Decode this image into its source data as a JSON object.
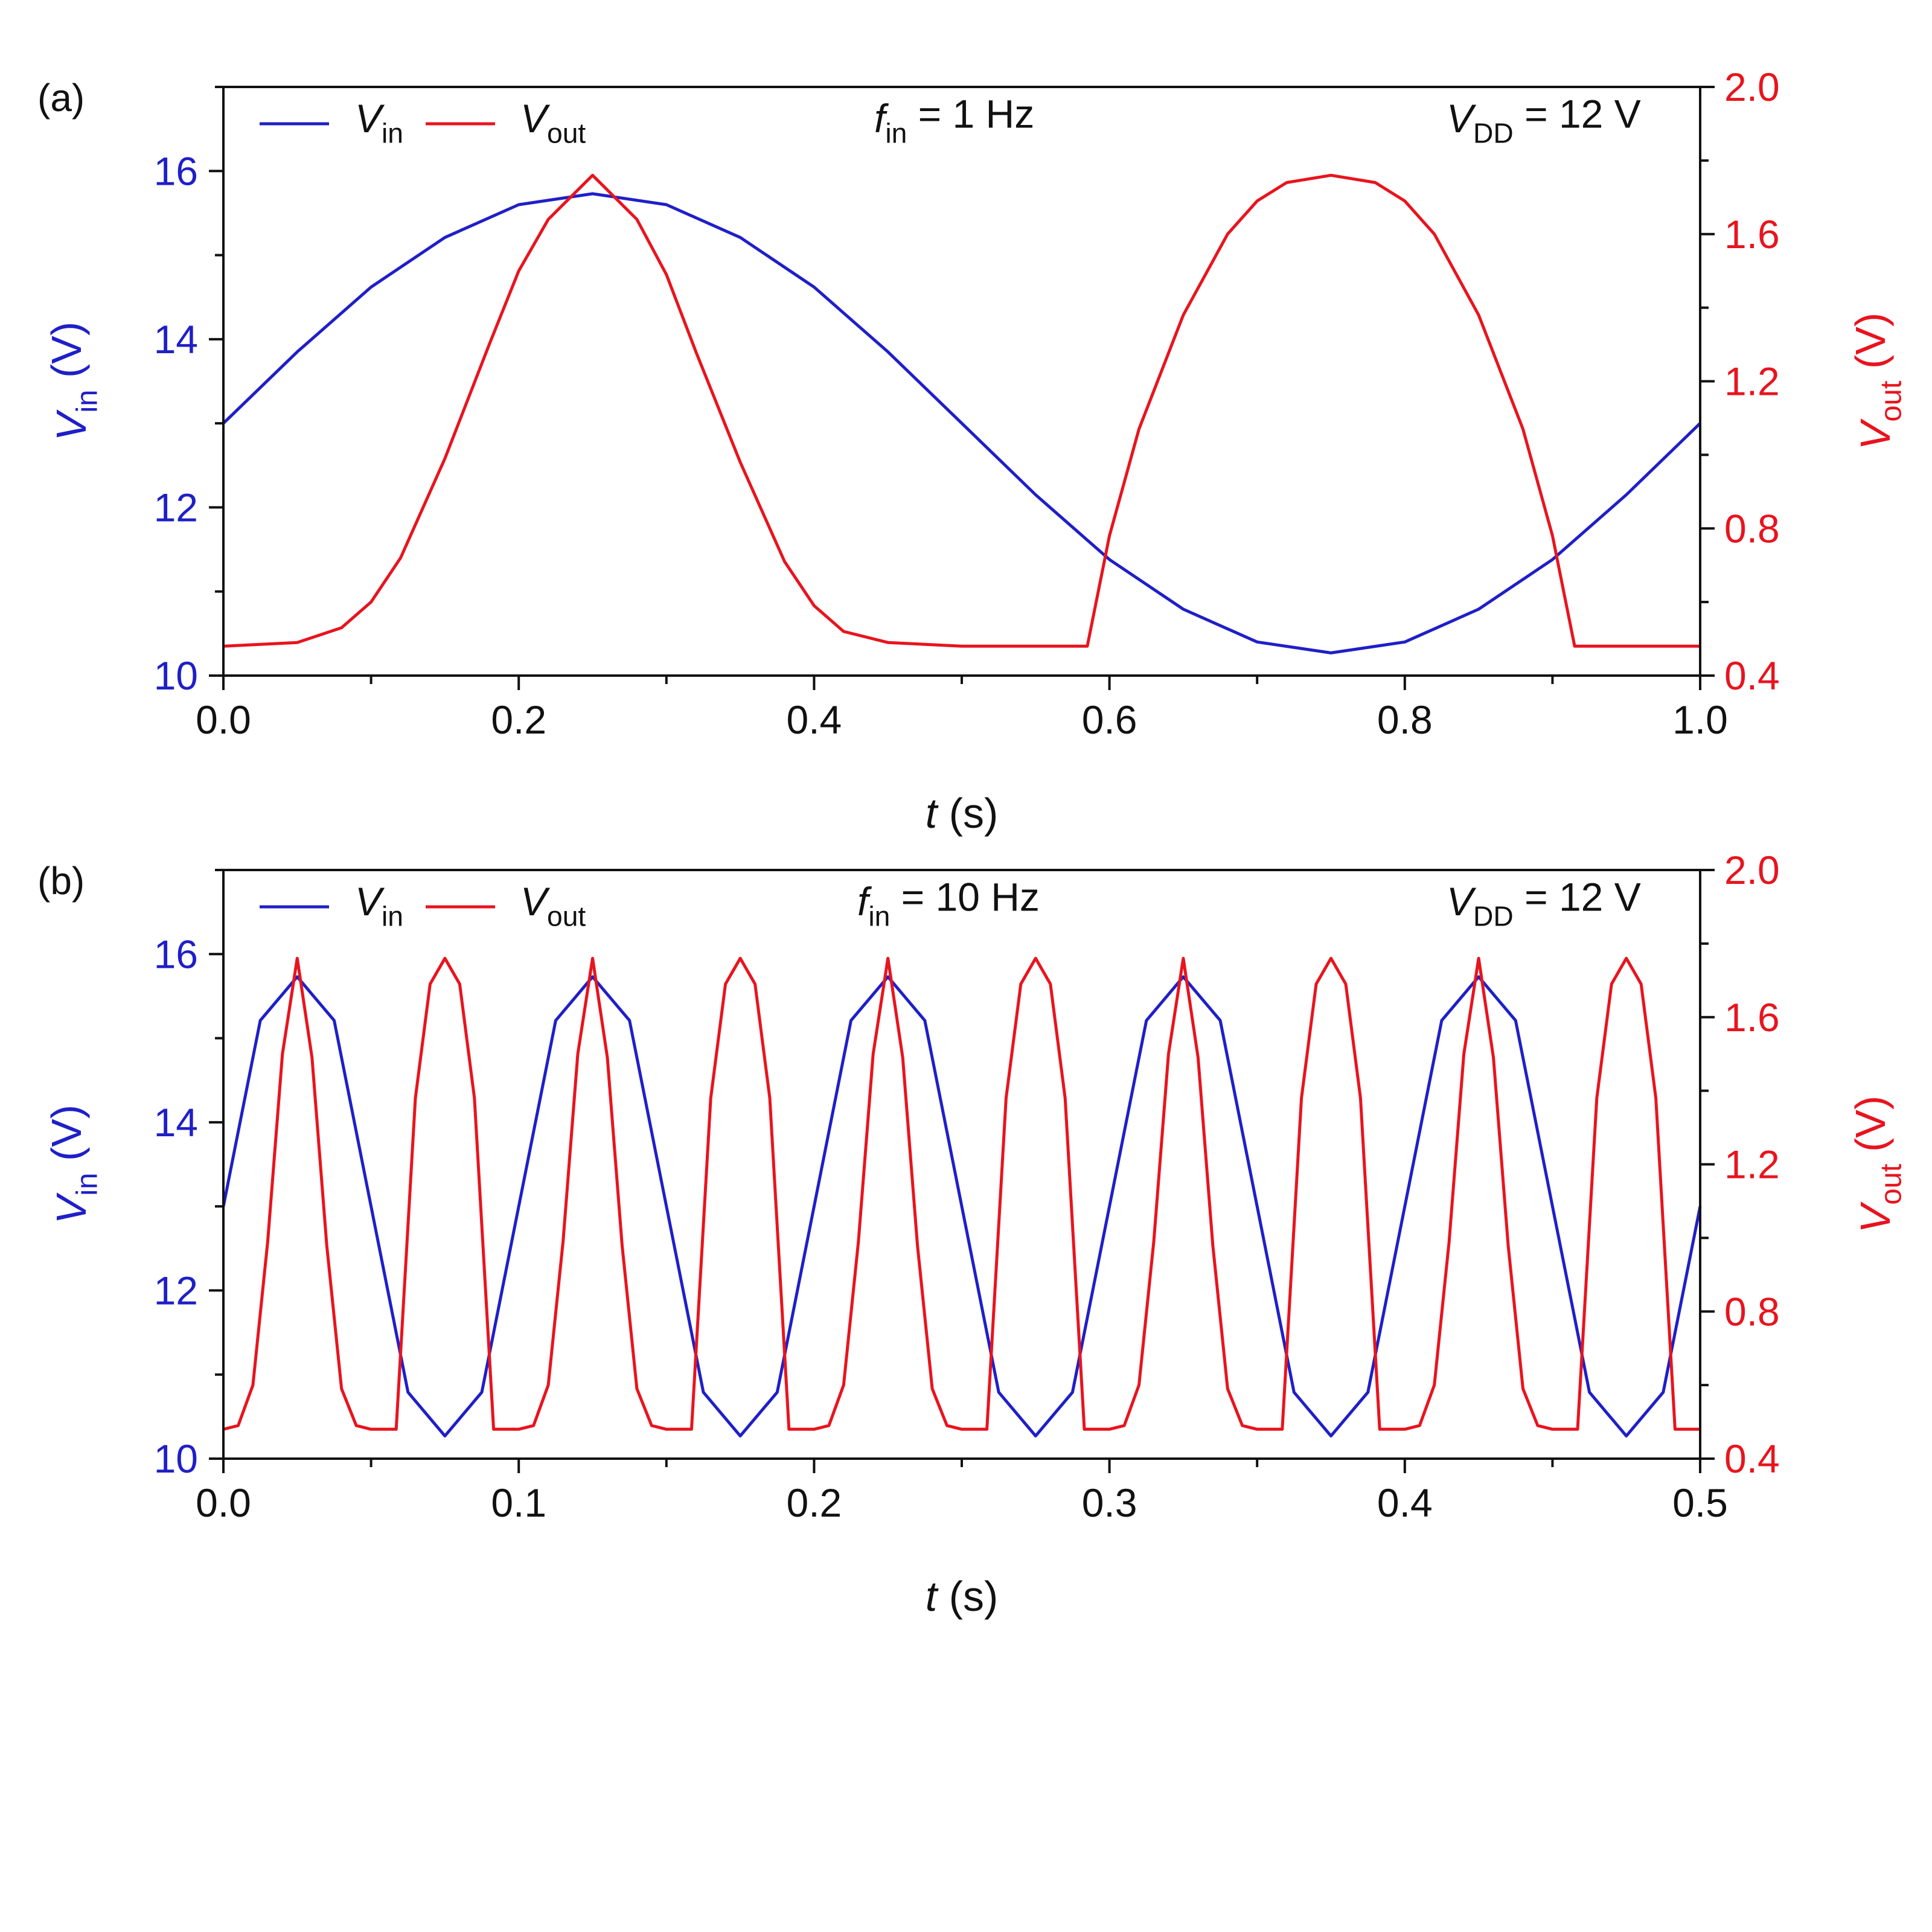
{
  "colors": {
    "vin": "#1f1fc8",
    "vout": "#e8141e",
    "axis": "#111111"
  },
  "chart_data": [
    {
      "type": "line",
      "panel_label": "(a)",
      "annotation_freq": {
        "main": "f",
        "sub": "in",
        "value": " = 1 Hz"
      },
      "annotation_vdd": {
        "main": "V",
        "sub": "DD",
        "value": " = 12 V"
      },
      "xlabel": {
        "main": "t",
        "rest": " (s)"
      },
      "ylabel_left": {
        "main": "V",
        "sub": "in",
        "rest": " (V)"
      },
      "ylabel_right": {
        "main": "V",
        "sub": "out",
        "rest": " (V)"
      },
      "xlim": [
        0,
        1.0
      ],
      "ylim_left": [
        10,
        17
      ],
      "ylim_right": [
        0.4,
        2.0
      ],
      "x_ticks": [
        "0.0",
        "0.2",
        "0.4",
        "0.6",
        "0.8",
        "1.0"
      ],
      "y_left_ticks": [
        "10",
        "12",
        "14",
        "16"
      ],
      "y_right_ticks": [
        "0.4",
        "0.8",
        "1.2",
        "1.6",
        "2.0"
      ],
      "legend": [
        {
          "main": "V",
          "sub": "in",
          "axis": "left"
        },
        {
          "main": "V",
          "sub": "out",
          "axis": "right"
        }
      ],
      "legend_position": "top-left",
      "series": [
        {
          "name": "V_in",
          "axis": "left",
          "x": [
            0,
            0.05,
            0.1,
            0.15,
            0.2,
            0.25,
            0.3,
            0.35,
            0.4,
            0.45,
            0.5,
            0.55,
            0.6,
            0.65,
            0.7,
            0.75,
            0.8,
            0.85,
            0.9,
            0.95,
            1.0
          ],
          "y": [
            13.0,
            13.85,
            14.62,
            15.21,
            15.6,
            15.73,
            15.6,
            15.21,
            14.62,
            13.85,
            13.0,
            12.15,
            11.38,
            10.79,
            10.4,
            10.27,
            10.4,
            10.79,
            11.38,
            12.15,
            13.0
          ]
        },
        {
          "name": "V_out",
          "axis": "right",
          "x": [
            0,
            0.05,
            0.08,
            0.1,
            0.12,
            0.15,
            0.18,
            0.2,
            0.22,
            0.25,
            0.28,
            0.3,
            0.32,
            0.35,
            0.38,
            0.4,
            0.42,
            0.45,
            0.5,
            0.55,
            0.585,
            0.6,
            0.62,
            0.65,
            0.68,
            0.7,
            0.72,
            0.75,
            0.78,
            0.8,
            0.82,
            0.85,
            0.88,
            0.9,
            0.915,
            0.95,
            1.0
          ],
          "y": [
            0.48,
            0.49,
            0.53,
            0.6,
            0.72,
            0.99,
            1.3,
            1.5,
            1.64,
            1.76,
            1.64,
            1.49,
            1.28,
            0.98,
            0.71,
            0.59,
            0.52,
            0.49,
            0.48,
            0.48,
            0.48,
            0.78,
            1.07,
            1.38,
            1.6,
            1.69,
            1.74,
            1.76,
            1.74,
            1.69,
            1.6,
            1.38,
            1.07,
            0.78,
            0.48,
            0.48,
            0.48
          ]
        }
      ]
    },
    {
      "type": "line",
      "panel_label": "(b)",
      "annotation_freq": {
        "main": "f",
        "sub": "in",
        "value": " = 10 Hz"
      },
      "annotation_vdd": {
        "main": "V",
        "sub": "DD",
        "value": " = 12 V"
      },
      "xlabel": {
        "main": "t",
        "rest": " (s)"
      },
      "ylabel_left": {
        "main": "V",
        "sub": "in",
        "rest": " (V)"
      },
      "ylabel_right": {
        "main": "V",
        "sub": "out",
        "rest": " (V)"
      },
      "xlim": [
        0,
        0.5
      ],
      "ylim_left": [
        10,
        17
      ],
      "ylim_right": [
        0.4,
        2.0
      ],
      "x_ticks": [
        "0.0",
        "0.1",
        "0.2",
        "0.3",
        "0.4",
        "0.5"
      ],
      "y_left_ticks": [
        "10",
        "12",
        "14",
        "16"
      ],
      "y_right_ticks": [
        "0.4",
        "0.8",
        "1.2",
        "1.6",
        "2.0"
      ],
      "legend": [
        {
          "main": "V",
          "sub": "in",
          "axis": "left"
        },
        {
          "main": "V",
          "sub": "out",
          "axis": "right"
        }
      ],
      "legend_position": "top-left",
      "series": [
        {
          "name": "V_in",
          "axis": "left",
          "x": [
            0,
            0.0125,
            0.025,
            0.0375,
            0.05,
            0.0625,
            0.075,
            0.0875,
            0.1,
            0.1125,
            0.125,
            0.1375,
            0.15,
            0.1625,
            0.175,
            0.1875,
            0.2,
            0.2125,
            0.225,
            0.2375,
            0.25,
            0.2625,
            0.275,
            0.2875,
            0.3,
            0.3125,
            0.325,
            0.3375,
            0.35,
            0.3625,
            0.375,
            0.3875,
            0.4,
            0.4125,
            0.425,
            0.4375,
            0.45,
            0.4625,
            0.475,
            0.4875,
            0.5
          ],
          "y": [
            13.0,
            15.21,
            15.73,
            15.21,
            13.0,
            10.79,
            10.27,
            10.79,
            13.0,
            15.21,
            15.73,
            15.21,
            13.0,
            10.79,
            10.27,
            10.79,
            13.0,
            15.21,
            15.73,
            15.21,
            13.0,
            10.79,
            10.27,
            10.79,
            13.0,
            15.21,
            15.73,
            15.21,
            13.0,
            10.79,
            10.27,
            10.79,
            13.0,
            15.21,
            15.73,
            15.21,
            13.0,
            10.79,
            10.27,
            10.79,
            13.0
          ]
        },
        {
          "name": "V_out",
          "axis": "right",
          "x": [
            0,
            0.005,
            0.01,
            0.015,
            0.02,
            0.025,
            0.03,
            0.035,
            0.04,
            0.045,
            0.05,
            0.055,
            0.0585,
            0.065,
            0.07,
            0.075,
            0.08,
            0.085,
            0.0915,
            0.095,
            0.1,
            0.105,
            0.11,
            0.115,
            0.12,
            0.125,
            0.13,
            0.135,
            0.14,
            0.145,
            0.15,
            0.155,
            0.1585,
            0.165,
            0.17,
            0.175,
            0.18,
            0.185,
            0.1915,
            0.195,
            0.2,
            0.205,
            0.21,
            0.215,
            0.22,
            0.225,
            0.23,
            0.235,
            0.24,
            0.245,
            0.25,
            0.255,
            0.2585,
            0.265,
            0.27,
            0.275,
            0.28,
            0.285,
            0.2915,
            0.295,
            0.3,
            0.305,
            0.31,
            0.315,
            0.32,
            0.325,
            0.33,
            0.335,
            0.34,
            0.345,
            0.35,
            0.355,
            0.3585,
            0.365,
            0.37,
            0.375,
            0.38,
            0.385,
            0.3915,
            0.395,
            0.4,
            0.405,
            0.41,
            0.415,
            0.42,
            0.425,
            0.43,
            0.435,
            0.44,
            0.445,
            0.45,
            0.455,
            0.4585,
            0.465,
            0.47,
            0.475,
            0.48,
            0.485,
            0.4915,
            0.495,
            0.5
          ],
          "y": [
            0.48,
            0.49,
            0.6,
            0.99,
            1.5,
            1.76,
            1.49,
            0.98,
            0.59,
            0.49,
            0.48,
            0.48,
            0.48,
            1.38,
            1.69,
            1.76,
            1.69,
            1.38,
            0.48,
            0.48,
            0.48,
            0.49,
            0.6,
            0.99,
            1.5,
            1.76,
            1.49,
            0.98,
            0.59,
            0.49,
            0.48,
            0.48,
            0.48,
            1.38,
            1.69,
            1.76,
            1.69,
            1.38,
            0.48,
            0.48,
            0.48,
            0.49,
            0.6,
            0.99,
            1.5,
            1.76,
            1.49,
            0.98,
            0.59,
            0.49,
            0.48,
            0.48,
            0.48,
            1.38,
            1.69,
            1.76,
            1.69,
            1.38,
            0.48,
            0.48,
            0.48,
            0.49,
            0.6,
            0.99,
            1.5,
            1.76,
            1.49,
            0.98,
            0.59,
            0.49,
            0.48,
            0.48,
            0.48,
            1.38,
            1.69,
            1.76,
            1.69,
            1.38,
            0.48,
            0.48,
            0.48,
            0.49,
            0.6,
            0.99,
            1.5,
            1.76,
            1.49,
            0.98,
            0.59,
            0.49,
            0.48,
            0.48,
            0.48,
            1.38,
            1.69,
            1.76,
            1.69,
            1.38,
            0.48,
            0.48,
            0.48
          ]
        }
      ]
    }
  ]
}
